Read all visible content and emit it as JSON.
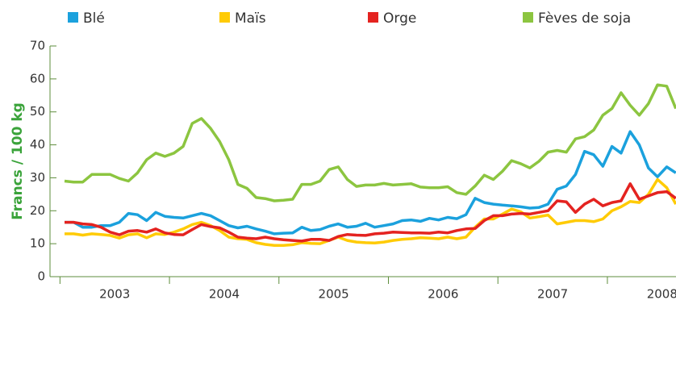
{
  "chart_data": {
    "type": "line",
    "y_label": "Francs / 100 kg",
    "categories": [
      null,
      null,
      null,
      null,
      null,
      "2003",
      null,
      null,
      null,
      null,
      null,
      null,
      null,
      null,
      null,
      null,
      null,
      "2004",
      null,
      null,
      null,
      null,
      null,
      null,
      null,
      null,
      null,
      null,
      null,
      "2005",
      null,
      null,
      null,
      null,
      null,
      null,
      null,
      null,
      null,
      null,
      null,
      "2006",
      null,
      null,
      null,
      null,
      null,
      null,
      null,
      null,
      null,
      null,
      null,
      "2007",
      null,
      null,
      null,
      null,
      null,
      null,
      null,
      null,
      null,
      null,
      null,
      "2008",
      null,
      null
    ],
    "series": [
      {
        "name": "Blé",
        "color": "#1ba1dd",
        "values": [
          16.5,
          16.5,
          15,
          15,
          15.5,
          15.5,
          16.5,
          19.2,
          18.8,
          17,
          19.5,
          18.3,
          18,
          17.8,
          18.5,
          19.2,
          18.5,
          17,
          15.5,
          14.8,
          15.3,
          14.5,
          13.8,
          13,
          13.2,
          13.3,
          15,
          14,
          14.3,
          15.3,
          16,
          15,
          15.3,
          16.2,
          15,
          15.5,
          16,
          17,
          17.2,
          16.8,
          17.7,
          17.2,
          18,
          17.6,
          18.8,
          23.8,
          22.5,
          22,
          21.7,
          21.5,
          21.2,
          20.8,
          21,
          22,
          26.5,
          27.5,
          31,
          38,
          37,
          33.5,
          39.5,
          37.5,
          44,
          40,
          33,
          30.3,
          33.3,
          31.5
        ]
      },
      {
        "name": "Maïs",
        "color": "#ffcb05",
        "values": [
          13,
          13,
          12.6,
          13,
          12.8,
          12.5,
          11.7,
          12.7,
          13,
          11.8,
          13,
          12.8,
          13.5,
          14.5,
          15.8,
          16.5,
          15.5,
          14,
          12,
          11.5,
          11.3,
          10.3,
          9.8,
          9.5,
          9.5,
          9.7,
          10.3,
          10.1,
          10,
          11,
          12,
          11,
          10.5,
          10.3,
          10.2,
          10.5,
          11,
          11.3,
          11.5,
          11.8,
          11.7,
          11.5,
          12,
          11.5,
          12,
          15,
          17.5,
          17.5,
          19,
          20.5,
          19.7,
          17.8,
          18.2,
          18.7,
          16,
          16.5,
          17,
          17,
          16.7,
          17.5,
          20,
          21.2,
          22.8,
          22.5,
          25,
          29.5,
          27,
          22
        ]
      },
      {
        "name": "Orge",
        "color": "#e42320",
        "values": [
          16.5,
          16.5,
          16,
          15.8,
          15,
          13.5,
          12.7,
          13.8,
          14,
          13.5,
          14.5,
          13.3,
          12.8,
          12.7,
          14.3,
          15.8,
          15.2,
          14.8,
          13.5,
          12,
          11.7,
          11.5,
          12,
          11.5,
          11.2,
          11,
          10.8,
          11.3,
          11.3,
          11,
          12.2,
          12.8,
          12.6,
          12.5,
          13,
          13.2,
          13.5,
          13.4,
          13.3,
          13.3,
          13.2,
          13.5,
          13.3,
          14,
          14.5,
          14.6,
          17,
          18.5,
          18.5,
          19,
          19.2,
          19,
          19.5,
          20,
          23,
          22.7,
          19.5,
          22,
          23.5,
          21.5,
          22.5,
          23,
          28.2,
          23.5,
          24.5,
          25.5,
          25.8,
          23.8
        ]
      },
      {
        "name": "Fèves de soja",
        "color": "#8cc540",
        "values": [
          29,
          28.7,
          28.7,
          31,
          31,
          31,
          29.8,
          29,
          31.5,
          35.5,
          37.5,
          36.5,
          37.5,
          39.5,
          46.5,
          48,
          45,
          41,
          35.5,
          28,
          26.8,
          24,
          23.7,
          23,
          23.2,
          23.5,
          28,
          28,
          29,
          32.5,
          33.3,
          29.5,
          27.4,
          27.8,
          27.8,
          28.3,
          27.8,
          28,
          28.2,
          27.2,
          27,
          27,
          27.3,
          25.5,
          25,
          27.5,
          30.8,
          29.5,
          32,
          35.2,
          34.3,
          33,
          35,
          37.8,
          38.3,
          37.8,
          41.8,
          42.5,
          44.5,
          49,
          51,
          55.8,
          52,
          49,
          52.5,
          58.2,
          57.8,
          51
        ]
      }
    ],
    "ylim": [
      0,
      70
    ],
    "yticks": [
      0,
      10,
      20,
      30,
      40,
      50,
      60,
      70
    ],
    "grid": false
  }
}
